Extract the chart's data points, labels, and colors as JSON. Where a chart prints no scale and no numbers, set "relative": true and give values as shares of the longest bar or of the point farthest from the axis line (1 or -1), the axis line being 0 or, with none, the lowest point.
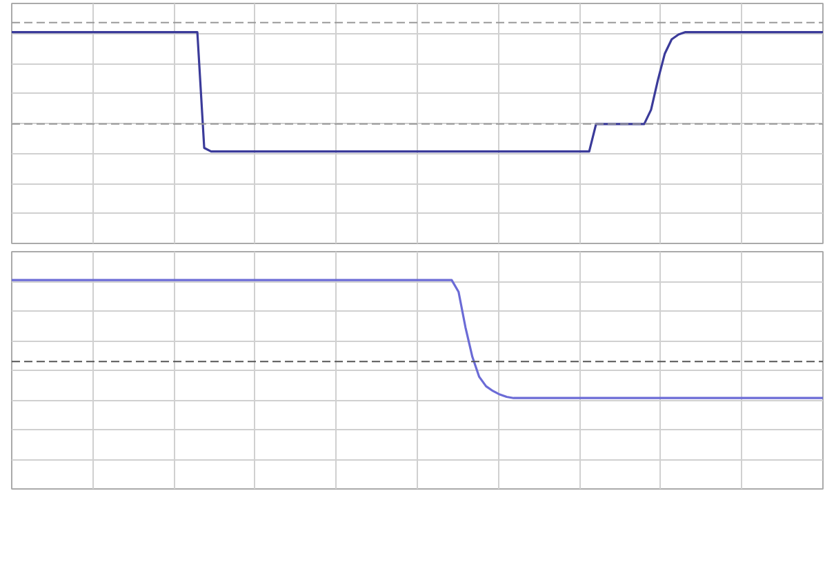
{
  "chart_data": [
    {
      "type": "line",
      "relative": true,
      "grid": true,
      "line_style": "solid",
      "categories": [
        null,
        null,
        null,
        null,
        null,
        null,
        null,
        null,
        null,
        null,
        null,
        null,
        null,
        null,
        null,
        null,
        null,
        null,
        null,
        null,
        null,
        null,
        null,
        null,
        null,
        null,
        null,
        null,
        null,
        null,
        null,
        null,
        null,
        null,
        null,
        null,
        null,
        null,
        null,
        null,
        null,
        null,
        null,
        null,
        null,
        null,
        null,
        null,
        null,
        null,
        null,
        null,
        null,
        null,
        null,
        null,
        null,
        null,
        null,
        null,
        null,
        null,
        null,
        null,
        null,
        null,
        null,
        null,
        null,
        null,
        null,
        null,
        null,
        null,
        null,
        null,
        null,
        null,
        null,
        null,
        null,
        null,
        null,
        null,
        null,
        null,
        null,
        null,
        null,
        null,
        null,
        null,
        null,
        null,
        null,
        null,
        null,
        null,
        null,
        null,
        null,
        null,
        null,
        null,
        null,
        null,
        null,
        null,
        null,
        null,
        null,
        null,
        null,
        null,
        null,
        null,
        null,
        null,
        null
      ],
      "series": [
        {
          "color": "#3b3b9a",
          "values": [
            1,
            1,
            1,
            1,
            1,
            1,
            1,
            1,
            1,
            1,
            1,
            1,
            1,
            1,
            1,
            1,
            1,
            1,
            1,
            1,
            1,
            1,
            1,
            1,
            1,
            1,
            1,
            1,
            0.03,
            0,
            0,
            0,
            0,
            0,
            0,
            0,
            0,
            0,
            0,
            0,
            0,
            0,
            0,
            0,
            0,
            0,
            0,
            0,
            0,
            0,
            0,
            0,
            0,
            0,
            0,
            0,
            0,
            0,
            0,
            0,
            0,
            0,
            0,
            0,
            0,
            0,
            0,
            0,
            0,
            0,
            0,
            0,
            0,
            0,
            0,
            0,
            0,
            0,
            0,
            0,
            0,
            0,
            0,
            0,
            0,
            0.23,
            0.23,
            0.23,
            0.23,
            0.23,
            0.23,
            0.23,
            0.23,
            0.35,
            0.6,
            0.82,
            0.94,
            0.98,
            1,
            1,
            1,
            1,
            1,
            1,
            1,
            1,
            1,
            1,
            1,
            1,
            1,
            1,
            1,
            1,
            1,
            1,
            1,
            1,
            1
          ]
        }
      ],
      "ref_lines": [
        {
          "axis": "y",
          "value": 1.08,
          "color": "#999999",
          "line_style": "dashed"
        },
        {
          "axis": "y",
          "value": 0.23,
          "color": "#999999",
          "line_style": "dashed"
        }
      ]
    },
    {
      "type": "line",
      "relative": true,
      "grid": true,
      "line_style": "solid",
      "categories": [
        null,
        null,
        null,
        null,
        null,
        null,
        null,
        null,
        null,
        null,
        null,
        null,
        null,
        null,
        null,
        null,
        null,
        null,
        null,
        null,
        null,
        null,
        null,
        null,
        null,
        null,
        null,
        null,
        null,
        null,
        null,
        null,
        null,
        null,
        null,
        null,
        null,
        null,
        null,
        null,
        null,
        null,
        null,
        null,
        null,
        null,
        null,
        null,
        null,
        null,
        null,
        null,
        null,
        null,
        null,
        null,
        null,
        null,
        null,
        null,
        null,
        null,
        null,
        null,
        null,
        null,
        null,
        null,
        null,
        null,
        null,
        null,
        null,
        null,
        null,
        null,
        null,
        null,
        null,
        null,
        null,
        null,
        null,
        null,
        null,
        null,
        null,
        null,
        null,
        null,
        null,
        null,
        null,
        null,
        null,
        null,
        null,
        null,
        null,
        null,
        null,
        null,
        null,
        null,
        null,
        null,
        null,
        null,
        null,
        null,
        null,
        null,
        null,
        null,
        null,
        null,
        null,
        null,
        null
      ],
      "series": [
        {
          "color": "#6b6bd6",
          "values": [
            1,
            1,
            1,
            1,
            1,
            1,
            1,
            1,
            1,
            1,
            1,
            1,
            1,
            1,
            1,
            1,
            1,
            1,
            1,
            1,
            1,
            1,
            1,
            1,
            1,
            1,
            1,
            1,
            1,
            1,
            1,
            1,
            1,
            1,
            1,
            1,
            1,
            1,
            1,
            1,
            1,
            1,
            1,
            1,
            1,
            1,
            1,
            1,
            1,
            1,
            1,
            1,
            1,
            1,
            1,
            1,
            1,
            1,
            1,
            1,
            1,
            1,
            1,
            1,
            1,
            0.9,
            0.6,
            0.35,
            0.18,
            0.1,
            0.06,
            0.03,
            0.01,
            0,
            0,
            0,
            0,
            0,
            0,
            0,
            0,
            0,
            0,
            0,
            0,
            0,
            0,
            0,
            0,
            0,
            0,
            0,
            0,
            0,
            0,
            0,
            0,
            0,
            0,
            0,
            0,
            0,
            0,
            0,
            0,
            0,
            0,
            0,
            0,
            0,
            0,
            0,
            0,
            0,
            0,
            0,
            0,
            0,
            0
          ]
        }
      ],
      "ref_lines": [
        {
          "axis": "y",
          "value": 0.31,
          "color": "#555555",
          "line_style": "dashed"
        }
      ]
    }
  ]
}
